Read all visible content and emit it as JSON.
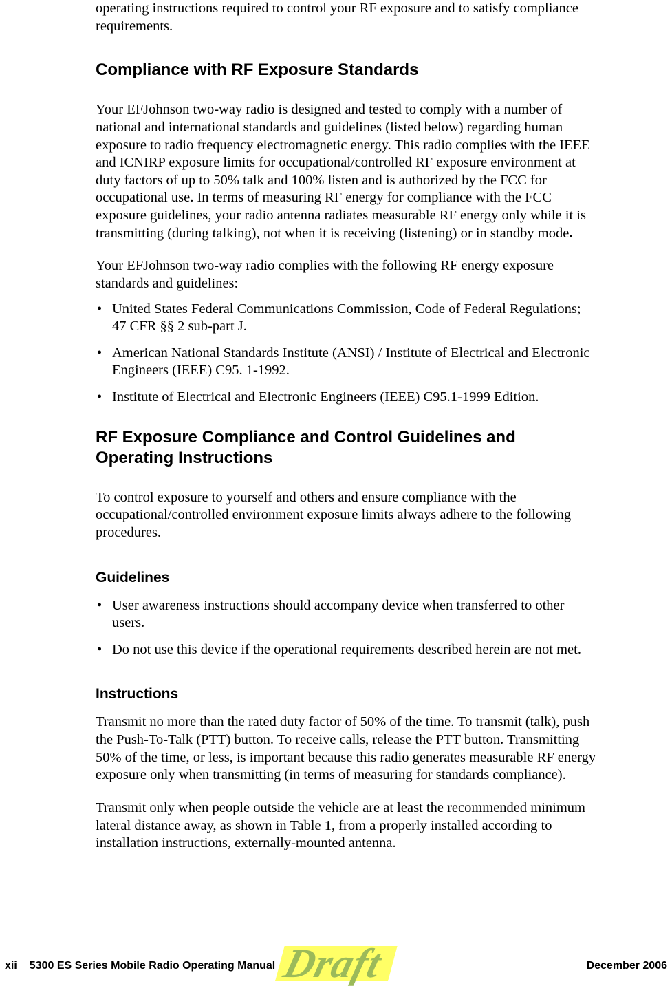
{
  "intro": {
    "text": "operating instructions required to control your RF exposure and to satisfy compliance requirements."
  },
  "section1": {
    "heading": "Compliance with RF Exposure Standards",
    "paragraph1_part1": "Your EFJohnson two-way radio is designed and tested to comply with a number of national and international standards and guidelines (listed below) regarding human exposure to radio frequency electromagnetic energy. This radio complies with the IEEE and ICNIRP exposure limits for occupational/controlled RF exposure environment at duty factors of up to 50% talk and 100% listen and is authorized by the FCC for occupational use",
    "paragraph1_bold1": ".",
    "paragraph1_part2": " In terms of measuring RF energy for compliance with the FCC exposure guidelines, your radio antenna radiates measurable RF energy only while it is transmitting (during talking), not when it is receiving (listening) or in standby mode",
    "paragraph1_bold2": ".",
    "paragraph2": "Your EFJohnson two-way radio complies with the following RF energy exposure standards and guidelines:",
    "bullets": [
      "United States Federal Communications Commission, Code of Federal Regulations; 47 CFR §§ 2 sub-part J.",
      "American National Standards Institute (ANSI) / Institute of Electrical and Electronic Engineers (IEEE) C95. 1-1992.",
      "Institute of Electrical and Electronic Engineers (IEEE) C95.1-1999 Edition."
    ]
  },
  "section2": {
    "heading": "RF Exposure Compliance and Control Guidelines and Operating Instructions",
    "paragraph1": "To control exposure to yourself and others and ensure compliance with the occupational/controlled environment exposure limits always adhere to the following procedures.",
    "subsection1": {
      "heading": "Guidelines",
      "bullets": [
        "User awareness instructions should accompany device when transferred to other users.",
        "Do not use this device if the operational requirements described herein are not met."
      ]
    },
    "subsection2": {
      "heading": "Instructions",
      "paragraph1": "Transmit no more than the rated duty factor of 50% of the time. To transmit (talk), push the Push-To-Talk (PTT) button. To receive calls, release the PTT button. Transmitting 50% of the time, or less, is important because this radio generates measurable RF energy exposure only when transmitting (in terms of measuring for standards compliance).",
      "paragraph2": "Transmit only when people outside the vehicle are at least the recommended minimum lateral distance away, as shown in Table 1, from a properly installed according to installation instructions, externally-mounted antenna."
    }
  },
  "footer": {
    "page_number": "xii",
    "manual_title": "5300 ES Series Mobile Radio Operating Manual",
    "date": "December 2006"
  },
  "watermark": "Draft"
}
